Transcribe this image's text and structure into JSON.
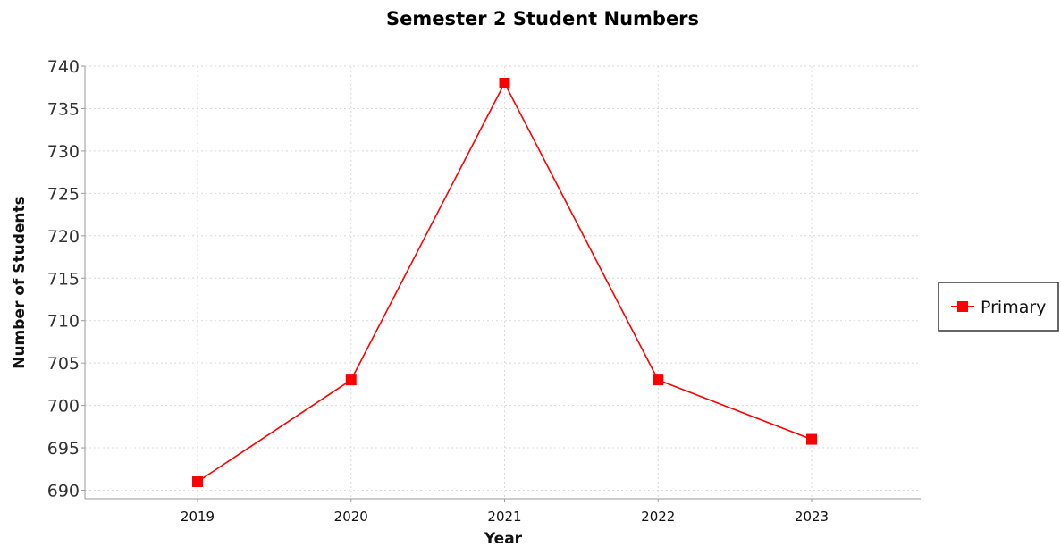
{
  "chart_data": {
    "type": "line",
    "title": "Semester 2 Student Numbers",
    "xlabel": "Year",
    "ylabel": "Number of Students",
    "categories": [
      "2019",
      "2020",
      "2021",
      "2022",
      "2023"
    ],
    "series": [
      {
        "name": "Primary",
        "values": [
          691,
          703,
          738,
          703,
          696
        ],
        "color": "#ff0000"
      }
    ],
    "ylim": [
      689,
      740
    ],
    "yticks": [
      690,
      695,
      700,
      705,
      710,
      715,
      720,
      725,
      730,
      735,
      740
    ],
    "grid": true,
    "legend_position": "right"
  }
}
